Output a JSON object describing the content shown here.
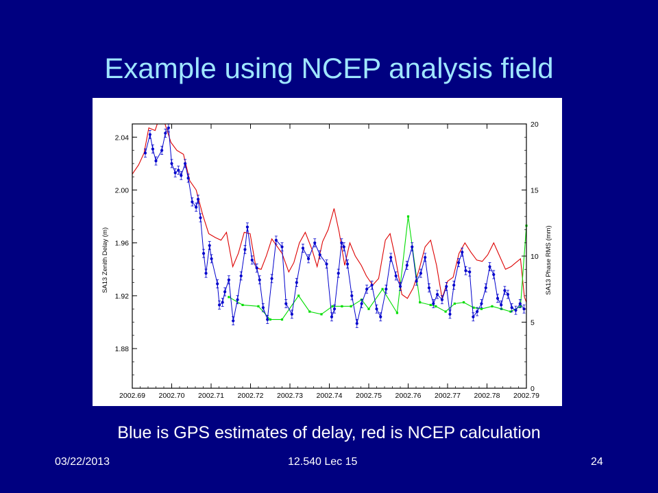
{
  "slide": {
    "title": "Example using NCEP analysis field",
    "caption": "Blue is GPS estimates of delay, red is NCEP calculation",
    "footer": {
      "date": "03/22/2013",
      "course": "12.540 Lec 15",
      "page": "24"
    }
  },
  "colors": {
    "background": "#000080",
    "title": "#9fe6ff",
    "gps": "#0000cc",
    "ncep": "#dd0000",
    "rms": "#00dd00"
  },
  "chart_data": {
    "type": "line",
    "xlabel": "",
    "ylabel": "SA13 Zenith Delay (m)",
    "y2label": "SA13 Phase RMS (mm)",
    "xlim": [
      2002.69,
      2002.79
    ],
    "ylim": [
      1.85,
      2.05
    ],
    "y2lim": [
      0,
      20
    ],
    "x_ticks": [
      "2002.69",
      "2002.70",
      "2002.71",
      "2002.72",
      "2002.73",
      "2002.74",
      "2002.75",
      "2002.76",
      "2002.77",
      "2002.78",
      "2002.79"
    ],
    "y_ticks": [
      "1.88",
      "1.92",
      "1.96",
      "2.00",
      "2.04"
    ],
    "y2_ticks": [
      "0",
      "5",
      "10",
      "15",
      "20"
    ],
    "grid": false,
    "series": [
      {
        "axis": "left",
        "x": [
          2002.6933,
          2002.6945,
          2002.6952,
          2002.696,
          2002.6975,
          2002.6984,
          2002.6992,
          2002.7,
          2002.7009,
          2002.7017,
          2002.7024,
          2002.7034,
          2002.7042,
          2002.7052,
          2002.7062,
          2002.7067,
          2002.7073,
          2002.7081,
          2002.7087,
          2002.7096,
          2002.7101,
          2002.7116,
          2002.7121,
          2002.7129,
          2002.7135,
          2002.7145,
          2002.7156,
          2002.7167,
          2002.7176,
          2002.7186,
          2002.7192,
          2002.7204,
          2002.7216,
          2002.7223,
          2002.7232,
          2002.7243,
          2002.7254,
          2002.7265,
          2002.728,
          2002.729,
          2002.7305,
          2002.7317,
          2002.7333,
          2002.7347,
          2002.7363,
          2002.7376,
          2002.7393,
          2002.7406,
          2002.7413,
          2002.7423,
          2002.7431,
          2002.7437,
          2002.7446,
          2002.7457,
          2002.747,
          2002.7482,
          2002.7495,
          2002.7508,
          2002.752,
          2002.753,
          2002.7544,
          2002.7556,
          2002.7569,
          2002.758,
          2002.7597,
          2002.761,
          2002.7621,
          2002.7632,
          2002.7643,
          2002.7653,
          2002.7664,
          2002.7674,
          2002.7686,
          2002.7697,
          2002.7706,
          2002.7716,
          2002.7728,
          2002.7737,
          2002.7746,
          2002.7756,
          2002.7765,
          2002.7775,
          2002.7786,
          2002.7797,
          2002.7807,
          2002.7817,
          2002.7827,
          2002.7836,
          2002.7845,
          2002.7853,
          2002.7863,
          2002.7873,
          2002.7884,
          2002.7894
        ],
        "values": [
          2.028,
          2.042,
          2.031,
          2.022,
          2.03,
          2.043,
          2.047,
          2.02,
          2.013,
          2.015,
          2.011,
          2.02,
          2.009,
          1.991,
          1.987,
          1.993,
          1.979,
          1.952,
          1.937,
          1.958,
          1.948,
          1.929,
          1.913,
          1.915,
          1.923,
          1.932,
          1.901,
          1.917,
          1.935,
          1.955,
          1.972,
          1.947,
          1.941,
          1.932,
          1.911,
          1.902,
          1.933,
          1.962,
          1.957,
          1.914,
          1.906,
          1.93,
          1.956,
          1.948,
          1.96,
          1.951,
          1.944,
          1.904,
          1.91,
          1.937,
          1.96,
          1.957,
          1.944,
          1.92,
          1.899,
          1.914,
          1.925,
          1.928,
          1.91,
          1.904,
          1.925,
          1.949,
          1.935,
          1.927,
          1.943,
          1.957,
          1.931,
          1.937,
          1.949,
          1.926,
          1.914,
          1.921,
          1.917,
          1.927,
          1.906,
          1.928,
          1.945,
          1.953,
          1.939,
          1.938,
          1.904,
          1.908,
          1.914,
          1.926,
          1.942,
          1.936,
          1.918,
          1.913,
          1.924,
          1.921,
          1.911,
          1.909,
          1.914,
          1.91
        ]
      },
      {
        "axis": "left",
        "x": [
          2002.69,
          2002.6916,
          2002.693,
          2002.6942,
          2002.6958,
          2002.697,
          2002.6983,
          2002.6998,
          2002.7013,
          2002.703,
          2002.7046,
          2002.7062,
          2002.7079,
          2002.7094,
          2002.7111,
          2002.7125,
          2002.7139,
          2002.7155,
          2002.7169,
          2002.7184,
          2002.7199,
          2002.7214,
          2002.7227,
          2002.724,
          2002.7254,
          2002.7266,
          2002.728,
          2002.7297,
          2002.731,
          2002.7324,
          2002.7339,
          2002.7356,
          2002.7369,
          2002.7383,
          2002.7397,
          2002.7412,
          2002.7425,
          2002.7439,
          2002.7452,
          2002.7466,
          2002.7481,
          2002.7494,
          2002.751,
          2002.7525,
          2002.7542,
          2002.7554,
          2002.7568,
          2002.7584,
          2002.7598,
          2002.7613,
          2002.7628,
          2002.7643,
          2002.7657,
          2002.7672,
          2002.7686,
          2002.77,
          2002.7714,
          2002.7729,
          2002.7744,
          2002.7759,
          2002.7774,
          2002.7788,
          2002.7802,
          2002.7817,
          2002.7832,
          2002.7847,
          2002.7861,
          2002.7873,
          2002.7885,
          2002.7895,
          2002.79
        ],
        "values": [
          2.012,
          2.019,
          2.028,
          2.047,
          2.045,
          2.056,
          2.05,
          2.036,
          2.03,
          2.027,
          2.007,
          2.0,
          1.981,
          1.967,
          1.964,
          1.962,
          1.968,
          1.942,
          1.952,
          1.968,
          1.967,
          1.941,
          1.94,
          1.95,
          1.963,
          1.958,
          1.952,
          1.938,
          1.945,
          1.96,
          1.968,
          1.955,
          1.942,
          1.961,
          1.97,
          1.986,
          1.968,
          1.943,
          1.96,
          1.95,
          1.943,
          1.935,
          1.928,
          1.933,
          1.962,
          1.967,
          1.948,
          1.921,
          1.918,
          1.926,
          1.94,
          1.957,
          1.962,
          1.943,
          1.918,
          1.931,
          1.934,
          1.952,
          1.96,
          1.953,
          1.947,
          1.946,
          1.951,
          1.96,
          1.95,
          1.94,
          1.942,
          1.945,
          1.948,
          1.919,
          1.915
        ]
      },
      {
        "axis": "right",
        "x": [
          2002.7145,
          2002.718,
          2002.722,
          2002.725,
          2002.728,
          2002.7322,
          2002.735,
          2002.738,
          2002.7408,
          2002.7432,
          2002.7455,
          2002.7482,
          2002.75,
          2002.7535,
          2002.7572,
          2002.76,
          2002.763,
          2002.7657,
          2002.767,
          2002.7695,
          2002.7718,
          2002.7741,
          2002.7766,
          2002.7786,
          2002.7813,
          2002.7837,
          2002.786,
          2002.7885,
          2002.79
        ],
        "values": [
          6.9,
          6.3,
          6.2,
          5.2,
          5.2,
          7.0,
          5.8,
          5.6,
          6.2,
          6.2,
          6.2,
          6.7,
          6.0,
          7.5,
          5.7,
          13.0,
          6.5,
          6.3,
          6.2,
          5.8,
          6.4,
          6.5,
          6.1,
          6.0,
          6.2,
          6.0,
          5.8,
          6.2,
          12.3
        ]
      }
    ]
  }
}
